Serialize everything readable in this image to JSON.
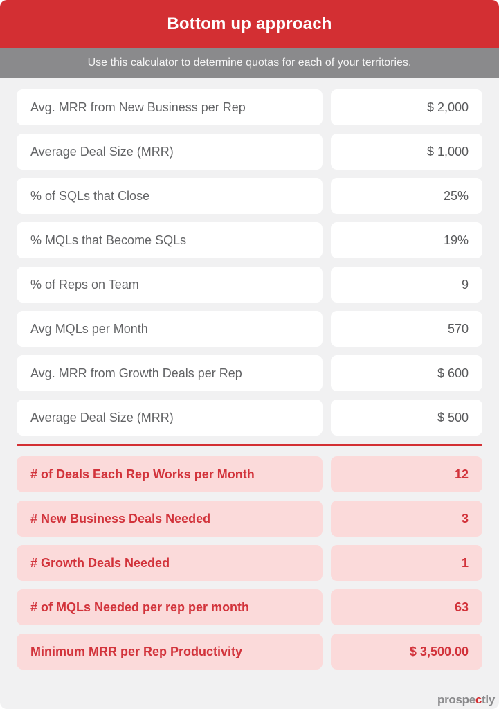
{
  "header": {
    "title": "Bottom up approach",
    "subtitle": "Use this calculator to determine quotas for each of your territories."
  },
  "colors": {
    "header_red": "#d32f33",
    "subheader_gray": "#8a8a8c",
    "page_background": "#f1f1f2",
    "input_cell_background": "#ffffff",
    "result_cell_background": "#fbdada",
    "result_text_red": "#d2333b",
    "input_text_gray": "#636466"
  },
  "inputs": [
    {
      "label": "Avg. MRR from New Business per Rep",
      "value": "$ 2,000"
    },
    {
      "label": "Average Deal Size (MRR)",
      "value": "$ 1,000"
    },
    {
      "label": "% of SQLs that Close",
      "value": "25%"
    },
    {
      "label": "% MQLs that Become SQLs",
      "value": "19%"
    },
    {
      "label": "% of Reps on Team",
      "value": "9"
    },
    {
      "label": "Avg MQLs per Month",
      "value": "570"
    },
    {
      "label": "Avg. MRR from Growth Deals per Rep",
      "value": "$ 600"
    },
    {
      "label": "Average Deal Size (MRR)",
      "value": "$ 500"
    }
  ],
  "results": [
    {
      "label": "# of Deals Each Rep Works per Month",
      "value": "12"
    },
    {
      "label": "# New Business Deals Needed",
      "value": "3"
    },
    {
      "label": "# Growth Deals Needed",
      "value": "1"
    },
    {
      "label": "# of MQLs Needed per rep per month",
      "value": "63"
    },
    {
      "label": "Minimum MRR per Rep Productivity",
      "value": "$ 3,500.00"
    }
  ],
  "footer": {
    "brand_prefix": "prospe",
    "brand_accent": "c",
    "brand_suffix": "tly"
  }
}
